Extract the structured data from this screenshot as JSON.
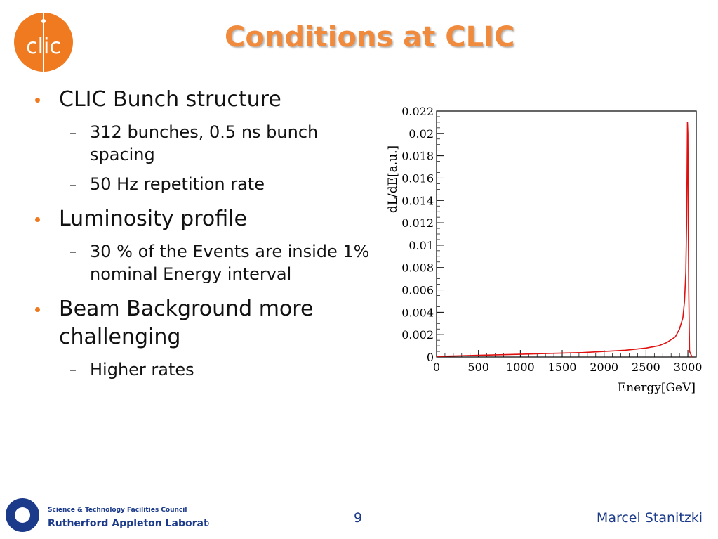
{
  "slide": {
    "title": "Conditions at CLIC",
    "page_number": "9",
    "author": "Marcel Stanitzki"
  },
  "logo": {
    "text": "clic",
    "color": "#f07a20"
  },
  "footer_logo": {
    "line1": "Science & Technology Facilities Council",
    "line2": "Rutherford Appleton Laboratory",
    "color": "#1b3a8a"
  },
  "bullets": [
    {
      "text": "CLIC Bunch structure",
      "sub": [
        "312 bunches, 0.5 ns bunch spacing",
        "50 Hz repetition rate"
      ]
    },
    {
      "text": "Luminosity profile",
      "sub": [
        "30 % of the Events are inside 1% nominal Energy interval"
      ]
    },
    {
      "text": "Beam Background more challenging",
      "sub": [
        "Higher rates"
      ]
    }
  ],
  "colors": {
    "title": "#f08a3c",
    "bullet_dot": "#f07a20",
    "footer_text": "#1b3a8a",
    "curve": "#e01010"
  },
  "chart_data": {
    "type": "line",
    "title": "",
    "xlabel": "Energy[GeV]",
    "ylabel": "dL/dE[a.u.]",
    "xlim": [
      0,
      3100
    ],
    "ylim": [
      0,
      0.022
    ],
    "xticks": [
      "0",
      "500",
      "1000",
      "1500",
      "2000",
      "2500",
      "3000"
    ],
    "yticks": [
      "0",
      "0.002",
      "0.004",
      "0.006",
      "0.008",
      "0.01",
      "0.012",
      "0.014",
      "0.016",
      "0.018",
      "0.02",
      "0.022"
    ],
    "series": [
      {
        "x": [
          0,
          250,
          500,
          750,
          1000,
          1250,
          1500,
          1750,
          2000,
          2250,
          2500,
          2650,
          2750,
          2850,
          2900,
          2940,
          2960,
          2975,
          2985,
          2990,
          2995,
          3000,
          3005,
          3010,
          3020,
          3050
        ],
        "y": [
          5e-05,
          0.0001,
          0.00015,
          0.0002,
          0.00025,
          0.0003,
          0.00035,
          0.0004,
          0.0005,
          0.0006,
          0.0008,
          0.001,
          0.0013,
          0.0018,
          0.0025,
          0.0035,
          0.005,
          0.0075,
          0.012,
          0.016,
          0.021,
          0.02,
          0.012,
          0.006,
          0.0005,
          0
        ]
      }
    ]
  }
}
